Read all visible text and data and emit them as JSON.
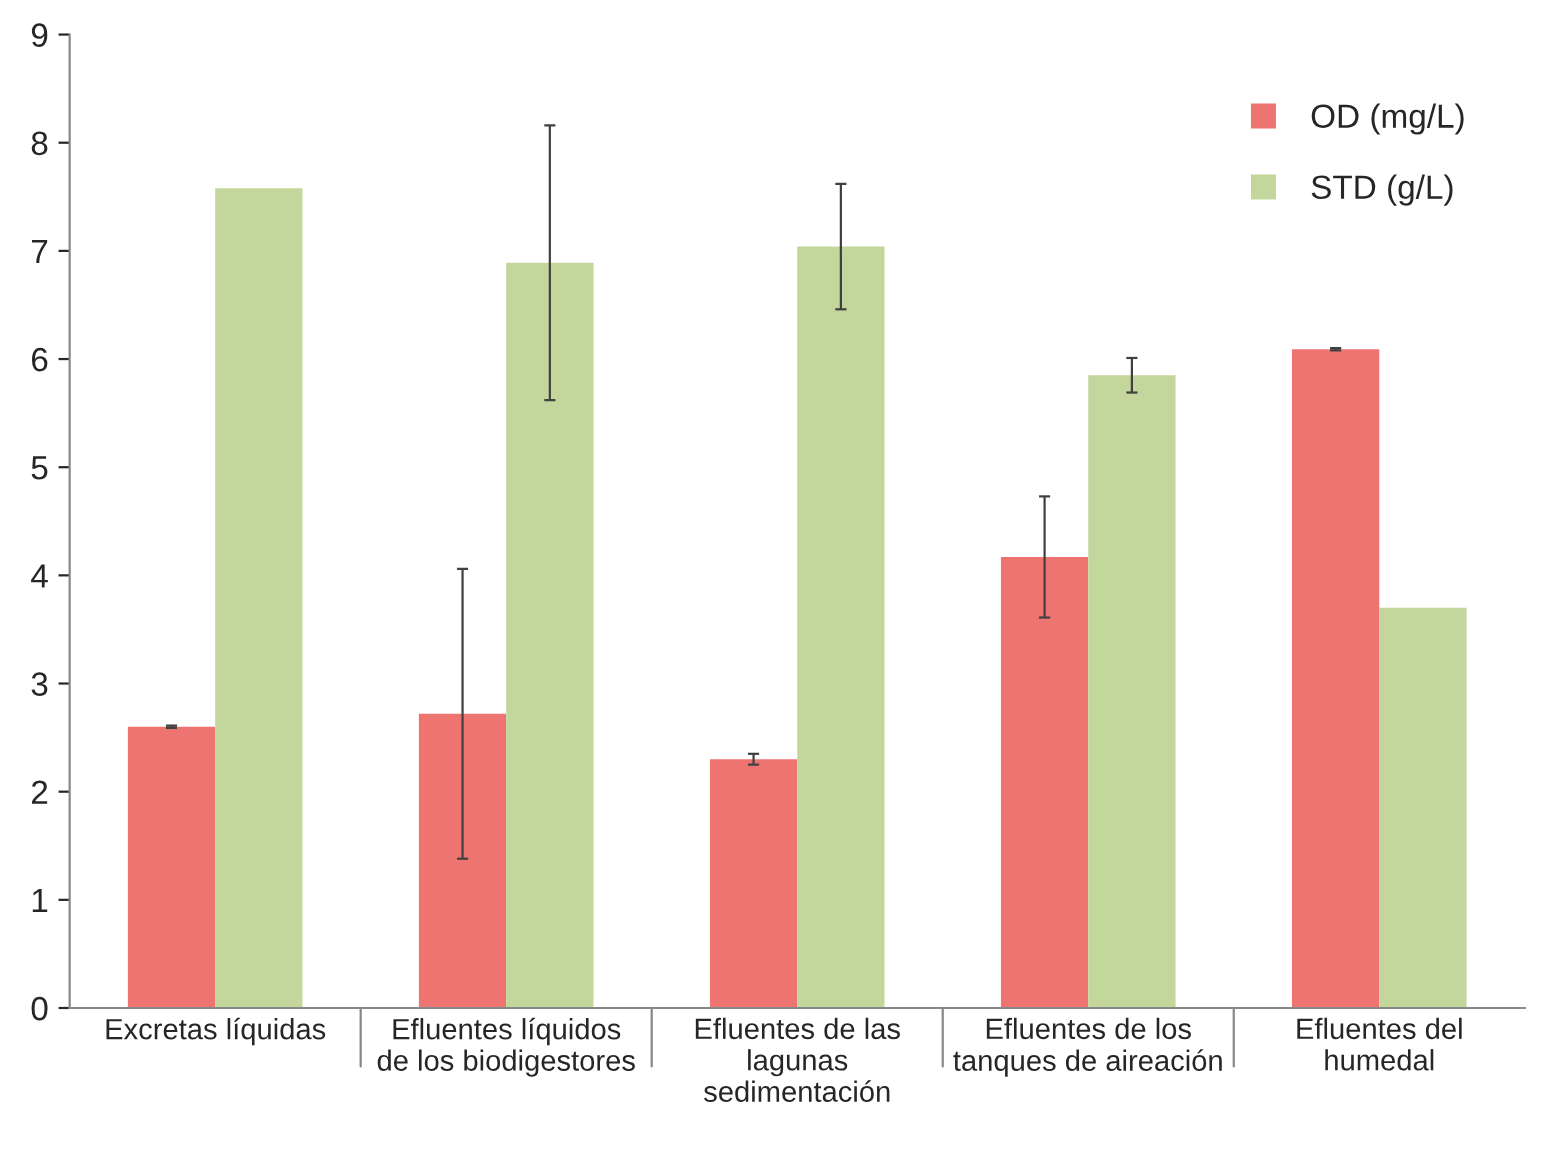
{
  "chart_data": {
    "type": "bar",
    "categories": [
      "Excretas líquidas",
      "Efluentes líquidos de los biodigestores",
      "Efluentes de las lagunas sedimentación",
      "Efluentes de los tanques de aireación",
      "Efluentes del humedal"
    ],
    "series": [
      {
        "name": "OD (mg/L)",
        "color": "#ee7472",
        "values": [
          2.6,
          2.72,
          2.3,
          4.17,
          6.09
        ],
        "errors": [
          0.01,
          1.34,
          0.05,
          0.56,
          0.01
        ]
      },
      {
        "name": "STD (g/L)",
        "color": "#c3d69b",
        "values": [
          7.58,
          6.89,
          7.04,
          5.85,
          3.7
        ],
        "errors": [
          null,
          1.27,
          0.58,
          0.16,
          null
        ]
      }
    ],
    "ylim": [
      0,
      9
    ],
    "yticks": [
      0,
      1,
      2,
      3,
      4,
      5,
      6,
      7,
      8,
      9
    ],
    "grid": false,
    "legend": "top right"
  }
}
